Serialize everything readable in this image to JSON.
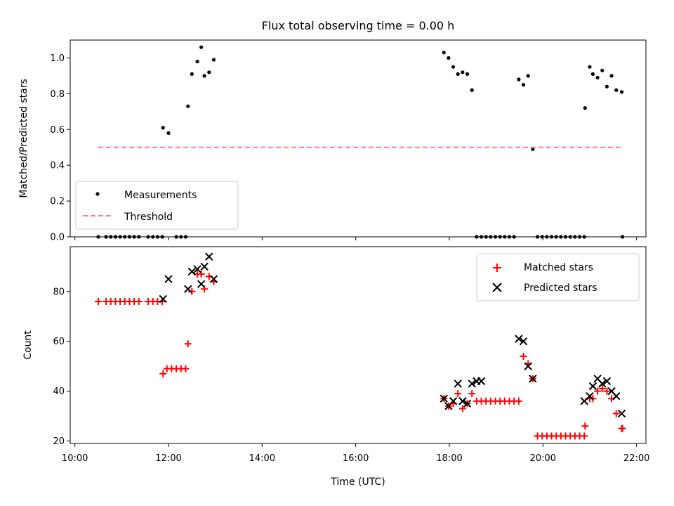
{
  "chart_data": [
    {
      "type": "scatter",
      "title": "Flux total observing time = 0.00 h",
      "xlabel": "",
      "ylabel": "Matched/Predicted stars",
      "xlim": [
        "10:00",
        "22:00"
      ],
      "ylim": [
        0,
        1.1
      ],
      "yticks": [
        0.0,
        0.2,
        0.4,
        0.6,
        0.8,
        1.0
      ],
      "yticklabels": [
        "0.0",
        "0.2",
        "0.4",
        "0.6",
        "0.8",
        "1.0"
      ],
      "grid": false,
      "legend": {
        "placement": "lower-left",
        "entries": [
          "Measurements",
          "Threshold"
        ]
      },
      "series": [
        {
          "name": "Measurements",
          "color": "#000000",
          "marker": "dot",
          "x": [
            "10:30",
            "10:40",
            "10:46",
            "10:52",
            "10:58",
            "11:04",
            "11:10",
            "11:16",
            "11:22",
            "11:34",
            "11:40",
            "11:46",
            "11:52",
            "11:53",
            "12:00",
            "12:10",
            "12:16",
            "12:22",
            "12:25",
            "12:30",
            "12:37",
            "12:42",
            "12:46",
            "12:52",
            "12:58",
            "17:53",
            "17:59",
            "18:05",
            "18:11",
            "18:17",
            "18:23",
            "18:29",
            "18:35",
            "18:41",
            "18:47",
            "18:53",
            "18:59",
            "19:05",
            "19:11",
            "19:17",
            "19:23",
            "19:29",
            "19:35",
            "19:41",
            "19:47",
            "19:53",
            "19:59",
            "20:05",
            "20:11",
            "20:17",
            "20:23",
            "20:29",
            "20:35",
            "20:41",
            "20:47",
            "20:53",
            "20:54",
            "21:00",
            "21:04",
            "21:10",
            "21:16",
            "21:22",
            "21:28",
            "21:34",
            "21:41",
            "21:42"
          ],
          "y": [
            0,
            0,
            0,
            0,
            0,
            0,
            0,
            0,
            0,
            0,
            0,
            0,
            0,
            0.61,
            0.58,
            0,
            0,
            0,
            0.73,
            0.91,
            0.98,
            1.06,
            0.9,
            0.92,
            0.99,
            1.03,
            1.0,
            0.95,
            0.91,
            0.92,
            0.91,
            0.82,
            0,
            0,
            0,
            0,
            0,
            0,
            0,
            0,
            0,
            0.88,
            0.85,
            0.9,
            0.49,
            0,
            0,
            0,
            0,
            0,
            0,
            0,
            0,
            0,
            0,
            0,
            0.72,
            0.95,
            0.91,
            0.89,
            0.93,
            0.84,
            0.9,
            0.82,
            0.81,
            0
          ]
        },
        {
          "name": "Threshold",
          "color": "#ff7f7f",
          "style": "dashed",
          "x": [
            "10:30",
            "21:42"
          ],
          "y": [
            0.5,
            0.5
          ]
        }
      ]
    },
    {
      "type": "scatter",
      "title": "",
      "xlabel": "Time (UTC)",
      "ylabel": "Count",
      "xlim": [
        "10:00",
        "22:00"
      ],
      "xticks": [
        "10:00",
        "12:00",
        "14:00",
        "16:00",
        "18:00",
        "20:00",
        "22:00"
      ],
      "ylim": [
        19,
        98
      ],
      "yticks": [
        20,
        40,
        60,
        80
      ],
      "yticklabels": [
        "20",
        "40",
        "60",
        "80"
      ],
      "grid": false,
      "legend": {
        "placement": "top-right",
        "entries": [
          "Matched stars",
          "Predicted stars"
        ]
      },
      "series": [
        {
          "name": "Matched stars",
          "color": "#ff0000",
          "marker": "plus",
          "x": [
            "10:30",
            "10:40",
            "10:46",
            "10:52",
            "10:58",
            "11:04",
            "11:10",
            "11:16",
            "11:22",
            "11:34",
            "11:40",
            "11:46",
            "11:52",
            "11:53",
            "11:58",
            "12:04",
            "12:10",
            "12:16",
            "12:22",
            "12:25",
            "12:30",
            "12:37",
            "12:42",
            "12:46",
            "12:52",
            "12:58",
            "17:53",
            "17:59",
            "18:05",
            "18:11",
            "18:17",
            "18:23",
            "18:29",
            "18:35",
            "18:41",
            "18:47",
            "18:53",
            "18:59",
            "19:05",
            "19:11",
            "19:17",
            "19:23",
            "19:29",
            "19:35",
            "19:41",
            "19:47",
            "19:53",
            "19:59",
            "20:05",
            "20:11",
            "20:17",
            "20:23",
            "20:29",
            "20:35",
            "20:41",
            "20:47",
            "20:53",
            "20:54",
            "21:00",
            "21:04",
            "21:10",
            "21:16",
            "21:22",
            "21:28",
            "21:34",
            "21:41",
            "21:42"
          ],
          "y": [
            76,
            76,
            76,
            76,
            76,
            76,
            76,
            76,
            76,
            76,
            76,
            76,
            76,
            47,
            49,
            49,
            49,
            49,
            49,
            59,
            80,
            87,
            87,
            81,
            86,
            84,
            37,
            34,
            35,
            39,
            33,
            35,
            39,
            36,
            36,
            36,
            36,
            36,
            36,
            36,
            36,
            36,
            36,
            54,
            51,
            45,
            22,
            22,
            22,
            22,
            22,
            22,
            22,
            22,
            22,
            22,
            22,
            26,
            37,
            37,
            40,
            41,
            40,
            37,
            31,
            25,
            25
          ]
        },
        {
          "name": "Predicted stars",
          "color": "#000000",
          "marker": "x",
          "x": [
            "11:53",
            "12:00",
            "12:25",
            "12:30",
            "12:37",
            "12:42",
            "12:46",
            "12:52",
            "12:58",
            "17:53",
            "17:59",
            "18:05",
            "18:11",
            "18:17",
            "18:23",
            "18:29",
            "18:35",
            "18:41",
            "19:29",
            "19:35",
            "19:41",
            "19:47",
            "20:53",
            "21:00",
            "21:04",
            "21:10",
            "21:16",
            "21:22",
            "21:28",
            "21:34",
            "21:41"
          ],
          "y": [
            77,
            85,
            81,
            88,
            89,
            83,
            90,
            94,
            85,
            37,
            34,
            36,
            43,
            36,
            35,
            43,
            44,
            44,
            61,
            60,
            50,
            45,
            36,
            38,
            42,
            45,
            43,
            44,
            40,
            38,
            31
          ]
        }
      ]
    }
  ]
}
